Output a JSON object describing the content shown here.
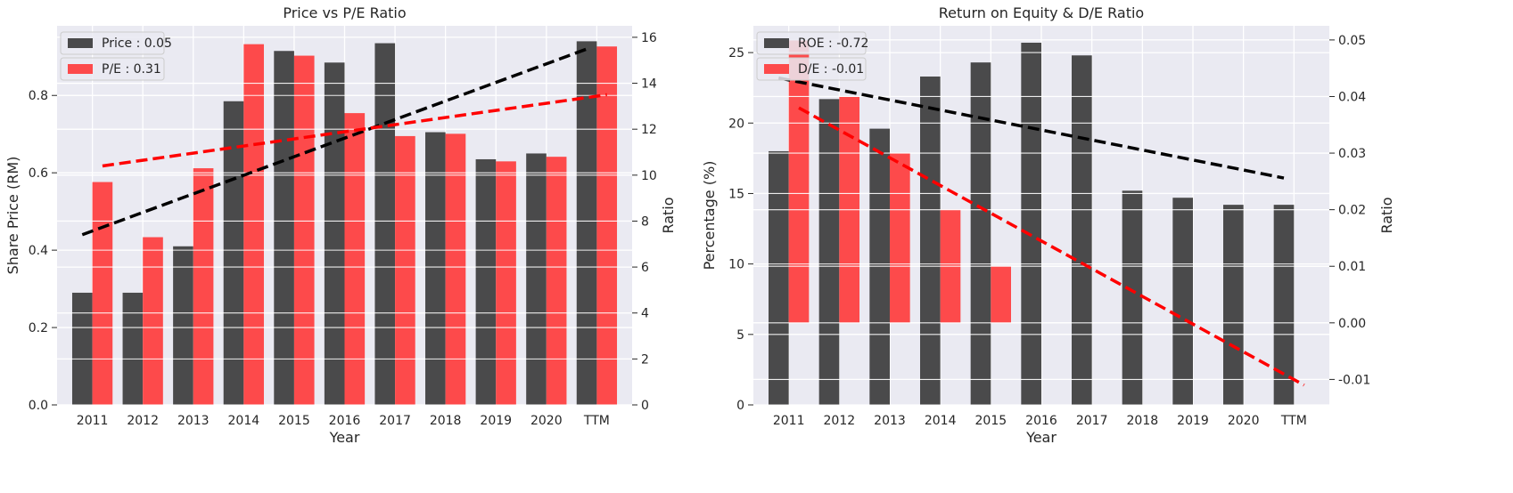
{
  "chart_data": [
    {
      "type": "bar",
      "title": "Price vs P/E Ratio",
      "xlabel": "Year",
      "ylabel": "Share Price (RM)",
      "ylabel_right": "Ratio",
      "categories": [
        "2011",
        "2012",
        "2013",
        "2014",
        "2015",
        "2016",
        "2017",
        "2018",
        "2019",
        "2020",
        "TTM"
      ],
      "ylim": [
        0,
        0.98
      ],
      "ylim_right": [
        0,
        16.5
      ],
      "yticks": [
        0.0,
        0.2,
        0.4,
        0.6,
        0.8
      ],
      "yticks_right": [
        0,
        2,
        4,
        6,
        8,
        10,
        12,
        14,
        16
      ],
      "grid": true,
      "legend_position": "top-left",
      "series": [
        {
          "name": "Price : 0.05",
          "axis": "left",
          "color": "#333333",
          "values": [
            0.29,
            0.29,
            0.41,
            0.785,
            0.915,
            0.885,
            0.935,
            0.705,
            0.635,
            0.65,
            0.94
          ],
          "trend": [
            0.44,
            0.92
          ]
        },
        {
          "name": "P/E : 0.31",
          "axis": "right",
          "color": "#ff3333",
          "values": [
            9.7,
            7.3,
            10.3,
            15.7,
            15.2,
            12.7,
            11.7,
            11.8,
            10.6,
            10.8,
            15.6
          ],
          "trend": [
            10.4,
            13.5
          ]
        }
      ]
    },
    {
      "type": "bar",
      "title": "Return on Equity & D/E Ratio",
      "xlabel": "Year",
      "ylabel": "Percentage (%)",
      "ylabel_right": "Ratio",
      "categories": [
        "2011",
        "2012",
        "2013",
        "2014",
        "2015",
        "2016",
        "2017",
        "2018",
        "2019",
        "2020",
        "TTM"
      ],
      "ylim": [
        0,
        26.9
      ],
      "ylim_right": [
        -0.0145,
        0.0525
      ],
      "yticks": [
        0,
        5,
        10,
        15,
        20,
        25
      ],
      "yticks_right": [
        -0.01,
        0.0,
        0.01,
        0.02,
        0.03,
        0.04,
        0.05
      ],
      "grid": true,
      "legend_position": "top-left",
      "series": [
        {
          "name": "ROE : -0.72",
          "axis": "left",
          "color": "#333333",
          "values": [
            18.0,
            21.7,
            19.6,
            23.3,
            24.3,
            25.7,
            24.8,
            15.2,
            14.7,
            14.2,
            14.2
          ],
          "trend": [
            23.2,
            16.1
          ]
        },
        {
          "name": "D/E : -0.01",
          "axis": "right",
          "color": "#ff3333",
          "values": [
            0.05,
            0.04,
            0.03,
            0.02,
            0.01,
            null,
            null,
            null,
            null,
            null,
            null
          ],
          "trend": [
            0.038,
            -0.011
          ]
        }
      ]
    }
  ]
}
